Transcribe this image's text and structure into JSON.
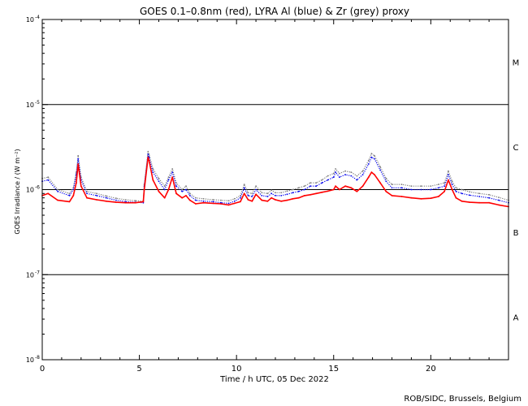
{
  "chart_data": {
    "type": "line",
    "title": "GOES 0.1–0.8nm (red), LYRA Al (blue) & Zr (grey) proxy",
    "xlabel": "Time / h UTC, 05 Dec 2022",
    "ylabel": "GOES Irradiance / (W m⁻²)",
    "xlim": [
      0,
      24
    ],
    "ylim": [
      1e-08,
      0.0001
    ],
    "yscale": "log",
    "x_ticks": [
      0,
      5,
      10,
      15,
      20
    ],
    "x_tick_labels": [
      "0",
      "5",
      "10",
      "15",
      "20"
    ],
    "y_ticks": [
      1e-08,
      1e-07,
      1e-06,
      1e-05,
      0.0001
    ],
    "y_tick_labels": [
      {
        "base": "10",
        "exp": "-8"
      },
      {
        "base": "10",
        "exp": "-7"
      },
      {
        "base": "10",
        "exp": "-6"
      },
      {
        "base": "10",
        "exp": "-5"
      },
      {
        "base": "10",
        "exp": "-4"
      }
    ],
    "flare_classes": [
      {
        "label": "A",
        "at": 3.16e-08
      },
      {
        "label": "B",
        "at": 3.16e-07
      },
      {
        "label": "C",
        "at": 3.16e-06
      },
      {
        "label": "M",
        "at": 3.16e-05
      }
    ],
    "class_lines": [
      1e-07,
      1e-06,
      1e-05
    ],
    "credit": "ROB/SIDC, Brussels, Belgium",
    "series": [
      {
        "name": "GOES 0.1–0.8nm",
        "color": "#ff0000",
        "x": [
          0,
          0.3,
          0.8,
          1.4,
          1.6,
          1.75,
          1.85,
          2.0,
          2.3,
          2.8,
          3.3,
          3.8,
          4.3,
          4.8,
          5.2,
          5.25,
          5.45,
          5.5,
          5.7,
          6.0,
          6.3,
          6.5,
          6.7,
          6.9,
          7.2,
          7.4,
          7.6,
          7.9,
          8.3,
          8.8,
          9.2,
          9.6,
          9.9,
          10.2,
          10.4,
          10.6,
          10.8,
          11.0,
          11.3,
          11.6,
          11.8,
          12.0,
          12.3,
          12.6,
          12.9,
          13.2,
          13.5,
          13.8,
          14.1,
          14.4,
          14.7,
          15.0,
          15.1,
          15.3,
          15.6,
          15.9,
          16.2,
          16.5,
          16.8,
          16.95,
          17.1,
          17.4,
          17.7,
          18.0,
          18.5,
          19.0,
          19.5,
          20.0,
          20.4,
          20.7,
          20.9,
          21.1,
          21.3,
          21.6,
          22.0,
          22.5,
          23.0,
          23.5,
          24.0
        ],
        "values": [
          8.5e-07,
          9e-07,
          7.5e-07,
          7.2e-07,
          8.5e-07,
          1.2e-06,
          2e-06,
          1.1e-06,
          8e-07,
          7.6e-07,
          7.3e-07,
          7.1e-07,
          7e-07,
          7e-07,
          7.2e-07,
          1e-06,
          2.4e-06,
          2.2e-06,
          1.3e-06,
          9.5e-07,
          8e-07,
          1e-06,
          1.4e-06,
          9e-07,
          8e-07,
          8.5e-07,
          7.5e-07,
          6.8e-07,
          7e-07,
          6.9e-07,
          6.8e-07,
          6.6e-07,
          6.9e-07,
          7.2e-07,
          9e-07,
          7.6e-07,
          7.3e-07,
          8.8e-07,
          7.5e-07,
          7.3e-07,
          8e-07,
          7.6e-07,
          7.3e-07,
          7.5e-07,
          7.8e-07,
          8e-07,
          8.5e-07,
          8.7e-07,
          9e-07,
          9.3e-07,
          9.6e-07,
          1e-06,
          1.1e-06,
          1e-06,
          1.1e-06,
          1.05e-06,
          9.5e-07,
          1.1e-06,
          1.4e-06,
          1.6e-06,
          1.5e-06,
          1.2e-06,
          9.5e-07,
          8.5e-07,
          8.3e-07,
          8e-07,
          7.8e-07,
          7.9e-07,
          8.3e-07,
          9.5e-07,
          1.3e-06,
          1e-06,
          8e-07,
          7.3e-07,
          7.1e-07,
          7e-07,
          7e-07,
          6.6e-07,
          6.3e-07
        ]
      },
      {
        "name": "LYRA Al proxy",
        "color": "#0000ee",
        "x": [
          0,
          0.3,
          0.8,
          1.4,
          1.6,
          1.75,
          1.85,
          2.0,
          2.3,
          2.8,
          3.3,
          3.8,
          4.3,
          4.8,
          5.2,
          5.25,
          5.45,
          5.5,
          5.7,
          6.0,
          6.3,
          6.5,
          6.7,
          6.9,
          7.2,
          7.4,
          7.6,
          7.9,
          8.3,
          8.8,
          9.2,
          9.6,
          9.9,
          10.2,
          10.4,
          10.6,
          10.8,
          11.0,
          11.3,
          11.6,
          11.8,
          12.0,
          12.3,
          12.6,
          12.9,
          13.2,
          13.5,
          13.8,
          14.1,
          14.4,
          14.7,
          15.0,
          15.1,
          15.3,
          15.6,
          15.9,
          16.2,
          16.5,
          16.8,
          16.95,
          17.1,
          17.4,
          17.7,
          18.0,
          18.5,
          19.0,
          19.5,
          20.0,
          20.4,
          20.7,
          20.9,
          21.1,
          21.3,
          21.6,
          22.0,
          22.5,
          23.0,
          23.5,
          24.0
        ],
        "values": [
          1.25e-06,
          1.3e-06,
          9.5e-07,
          8.5e-07,
          1e-06,
          1.5e-06,
          2.3e-06,
          1.3e-06,
          9e-07,
          8.5e-07,
          8e-07,
          7.5e-07,
          7.2e-07,
          7.1e-07,
          7e-07,
          1.1e-06,
          2.6e-06,
          2.4e-06,
          1.6e-06,
          1.25e-06,
          1e-06,
          1.3e-06,
          1.6e-06,
          1.1e-06,
          9.5e-07,
          1e-06,
          8.5e-07,
          7.5e-07,
          7.3e-07,
          7.2e-07,
          7e-07,
          6.9e-07,
          7.3e-07,
          8e-07,
          1.05e-06,
          8.5e-07,
          8.3e-07,
          1e-06,
          8.5e-07,
          8.3e-07,
          9e-07,
          8.5e-07,
          8.5e-07,
          8.8e-07,
          9.2e-07,
          9.5e-07,
          1e-06,
          1.1e-06,
          1.1e-06,
          1.2e-06,
          1.3e-06,
          1.4e-06,
          1.6e-06,
          1.4e-06,
          1.5e-06,
          1.45e-06,
          1.3e-06,
          1.5e-06,
          2e-06,
          2.4e-06,
          2.3e-06,
          1.7e-06,
          1.25e-06,
          1.05e-06,
          1.05e-06,
          1e-06,
          1e-06,
          1e-06,
          1.05e-06,
          1.1e-06,
          1.5e-06,
          1.15e-06,
          9.5e-07,
          9e-07,
          8.6e-07,
          8.3e-07,
          8e-07,
          7.5e-07,
          7e-07
        ]
      },
      {
        "name": "LYRA Zr proxy",
        "color": "#808080",
        "x": [
          0,
          0.3,
          0.8,
          1.4,
          1.6,
          1.75,
          1.85,
          2.0,
          2.3,
          2.8,
          3.3,
          3.8,
          4.3,
          4.8,
          5.2,
          5.25,
          5.45,
          5.5,
          5.7,
          6.0,
          6.3,
          6.5,
          6.7,
          6.9,
          7.2,
          7.4,
          7.6,
          7.9,
          8.3,
          8.8,
          9.2,
          9.6,
          9.9,
          10.2,
          10.4,
          10.6,
          10.8,
          11.0,
          11.3,
          11.6,
          11.8,
          12.0,
          12.3,
          12.6,
          12.9,
          13.2,
          13.5,
          13.8,
          14.1,
          14.4,
          14.7,
          15.0,
          15.1,
          15.3,
          15.6,
          15.9,
          16.2,
          16.5,
          16.8,
          16.95,
          17.1,
          17.4,
          17.7,
          18.0,
          18.5,
          19.0,
          19.5,
          20.0,
          20.4,
          20.7,
          20.9,
          21.1,
          21.3,
          21.6,
          22.0,
          22.5,
          23.0,
          23.5,
          24.0
        ],
        "values": [
          1.35e-06,
          1.4e-06,
          1e-06,
          9e-07,
          1.05e-06,
          1.6e-06,
          2.5e-06,
          1.4e-06,
          9.5e-07,
          9e-07,
          8.4e-07,
          7.9e-07,
          7.6e-07,
          7.4e-07,
          7.3e-07,
          1.15e-06,
          2.8e-06,
          2.6e-06,
          1.75e-06,
          1.35e-06,
          1.1e-06,
          1.4e-06,
          1.75e-06,
          1.2e-06,
          1e-06,
          1.1e-06,
          9e-07,
          8e-07,
          7.8e-07,
          7.6e-07,
          7.5e-07,
          7.4e-07,
          7.8e-07,
          8.5e-07,
          1.15e-06,
          9.2e-07,
          9e-07,
          1.1e-06,
          9.2e-07,
          9e-07,
          9.8e-07,
          9.2e-07,
          9.2e-07,
          9.6e-07,
          1e-06,
          1.05e-06,
          1.1e-06,
          1.2e-06,
          1.2e-06,
          1.3e-06,
          1.45e-06,
          1.55e-06,
          1.75e-06,
          1.55e-06,
          1.65e-06,
          1.6e-06,
          1.45e-06,
          1.65e-06,
          2.2e-06,
          2.65e-06,
          2.5e-06,
          1.85e-06,
          1.35e-06,
          1.15e-06,
          1.15e-06,
          1.1e-06,
          1.1e-06,
          1.1e-06,
          1.15e-06,
          1.2e-06,
          1.65e-06,
          1.25e-06,
          1.05e-06,
          1e-06,
          9.4e-07,
          9e-07,
          8.7e-07,
          8.1e-07,
          7.5e-07
        ]
      }
    ]
  }
}
